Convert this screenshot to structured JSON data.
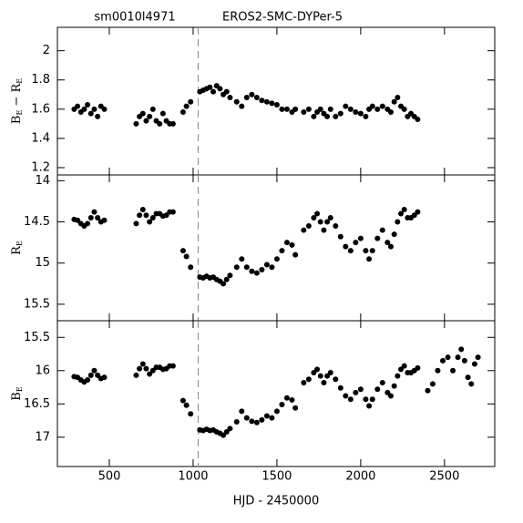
{
  "chart_data": [
    {
      "type": "scatter",
      "title": "sm0010l4971",
      "subtitle": "EROS2-SMC-DYPer-5",
      "ylabel": [
        "B",
        "E",
        " − R",
        "E"
      ],
      "color": "#000000",
      "vline": 1030,
      "xlim": [
        190,
        2800
      ],
      "xticks": [
        500,
        1000,
        1500,
        2000,
        2500
      ],
      "ylim": [
        1.15,
        2.16
      ],
      "yticks": [
        1.2,
        1.4,
        1.6,
        1.8,
        2
      ],
      "x": [
        290,
        310,
        330,
        350,
        370,
        390,
        410,
        430,
        450,
        470,
        660,
        680,
        700,
        720,
        740,
        760,
        780,
        800,
        820,
        840,
        860,
        880,
        940,
        960,
        985,
        1040,
        1060,
        1080,
        1100,
        1120,
        1140,
        1160,
        1180,
        1200,
        1220,
        1260,
        1290,
        1320,
        1350,
        1380,
        1410,
        1440,
        1470,
        1500,
        1530,
        1560,
        1590,
        1610,
        1660,
        1690,
        1720,
        1740,
        1760,
        1780,
        1800,
        1820,
        1850,
        1880,
        1910,
        1940,
        1970,
        2000,
        2030,
        2050,
        2070,
        2100,
        2130,
        2160,
        2180,
        2200,
        2220,
        2240,
        2260,
        2280,
        2300,
        2320,
        2340
      ],
      "values": [
        1.6,
        1.62,
        1.58,
        1.6,
        1.63,
        1.57,
        1.6,
        1.55,
        1.62,
        1.6,
        1.5,
        1.55,
        1.57,
        1.52,
        1.55,
        1.6,
        1.52,
        1.5,
        1.57,
        1.52,
        1.5,
        1.5,
        1.58,
        1.62,
        1.65,
        1.72,
        1.73,
        1.74,
        1.75,
        1.72,
        1.76,
        1.74,
        1.7,
        1.72,
        1.68,
        1.65,
        1.62,
        1.68,
        1.7,
        1.68,
        1.66,
        1.65,
        1.64,
        1.63,
        1.6,
        1.6,
        1.58,
        1.6,
        1.58,
        1.6,
        1.55,
        1.58,
        1.6,
        1.57,
        1.55,
        1.6,
        1.55,
        1.57,
        1.62,
        1.6,
        1.58,
        1.57,
        1.55,
        1.6,
        1.62,
        1.6,
        1.62,
        1.6,
        1.58,
        1.65,
        1.68,
        1.62,
        1.6,
        1.55,
        1.57,
        1.55,
        1.53
      ]
    },
    {
      "type": "scatter",
      "ylabel": [
        "R",
        "E"
      ],
      "color": "#000000",
      "vline": 1030,
      "xlim": [
        190,
        2800
      ],
      "xticks": [
        500,
        1000,
        1500,
        2000,
        2500
      ],
      "ylim": [
        15.7,
        13.93
      ],
      "yticks": [
        14,
        14.5,
        15,
        15.5
      ],
      "x": [
        290,
        310,
        330,
        350,
        370,
        390,
        410,
        430,
        450,
        470,
        660,
        680,
        700,
        720,
        740,
        760,
        780,
        800,
        820,
        840,
        860,
        880,
        940,
        960,
        985,
        1040,
        1060,
        1080,
        1100,
        1120,
        1140,
        1160,
        1180,
        1200,
        1220,
        1260,
        1290,
        1320,
        1350,
        1380,
        1410,
        1440,
        1470,
        1500,
        1530,
        1560,
        1590,
        1610,
        1660,
        1690,
        1720,
        1740,
        1760,
        1780,
        1800,
        1820,
        1850,
        1880,
        1910,
        1940,
        1970,
        2000,
        2030,
        2050,
        2070,
        2100,
        2130,
        2160,
        2180,
        2200,
        2220,
        2240,
        2260,
        2280,
        2300,
        2320,
        2340
      ],
      "values": [
        14.47,
        14.48,
        14.52,
        14.55,
        14.52,
        14.45,
        14.38,
        14.45,
        14.5,
        14.48,
        14.52,
        14.42,
        14.35,
        14.42,
        14.5,
        14.45,
        14.4,
        14.4,
        14.43,
        14.42,
        14.38,
        14.38,
        14.85,
        14.92,
        15.05,
        15.17,
        15.18,
        15.16,
        15.18,
        15.17,
        15.2,
        15.22,
        15.25,
        15.2,
        15.15,
        15.05,
        14.95,
        15.05,
        15.1,
        15.12,
        15.08,
        15.02,
        15.05,
        14.95,
        14.85,
        14.75,
        14.78,
        14.9,
        14.6,
        14.55,
        14.45,
        14.4,
        14.5,
        14.6,
        14.5,
        14.45,
        14.55,
        14.68,
        14.8,
        14.85,
        14.75,
        14.7,
        14.85,
        14.95,
        14.85,
        14.7,
        14.6,
        14.75,
        14.8,
        14.65,
        14.5,
        14.4,
        14.35,
        14.45,
        14.45,
        14.42,
        14.38
      ]
    },
    {
      "type": "scatter",
      "ylabel": [
        "B",
        "E"
      ],
      "xlabel": "HJD - 2450000",
      "color": "#000000",
      "vline": 1030,
      "xlim": [
        190,
        2800
      ],
      "xticks": [
        500,
        1000,
        1500,
        2000,
        2500
      ],
      "ylim": [
        17.44,
        15.25
      ],
      "yticks": [
        15.5,
        16,
        16.5,
        17
      ],
      "x": [
        290,
        310,
        330,
        350,
        370,
        390,
        410,
        430,
        450,
        470,
        660,
        680,
        700,
        720,
        740,
        760,
        780,
        800,
        820,
        840,
        860,
        880,
        940,
        960,
        985,
        1040,
        1060,
        1080,
        1100,
        1120,
        1140,
        1160,
        1180,
        1200,
        1220,
        1260,
        1290,
        1320,
        1350,
        1380,
        1410,
        1440,
        1470,
        1500,
        1530,
        1560,
        1590,
        1610,
        1660,
        1690,
        1720,
        1740,
        1760,
        1780,
        1800,
        1820,
        1850,
        1880,
        1910,
        1940,
        1970,
        2000,
        2030,
        2050,
        2070,
        2100,
        2130,
        2160,
        2180,
        2200,
        2220,
        2240,
        2260,
        2280,
        2300,
        2320,
        2340,
        2400,
        2430,
        2460,
        2490,
        2520,
        2550,
        2580,
        2600,
        2620,
        2640,
        2660,
        2680,
        2700
      ],
      "values": [
        16.09,
        16.1,
        16.14,
        16.17,
        16.14,
        16.07,
        16.0,
        16.07,
        16.12,
        16.1,
        16.07,
        15.97,
        15.9,
        15.97,
        16.05,
        16.0,
        15.95,
        15.95,
        15.98,
        15.97,
        15.93,
        15.93,
        16.45,
        16.52,
        16.65,
        16.89,
        16.9,
        16.88,
        16.9,
        16.89,
        16.92,
        16.94,
        16.97,
        16.92,
        16.87,
        16.77,
        16.61,
        16.71,
        16.76,
        16.78,
        16.74,
        16.68,
        16.71,
        16.61,
        16.51,
        16.41,
        16.44,
        16.56,
        16.18,
        16.13,
        16.03,
        15.98,
        16.08,
        16.18,
        16.08,
        16.03,
        16.13,
        16.26,
        16.38,
        16.43,
        16.33,
        16.28,
        16.43,
        16.53,
        16.43,
        16.28,
        16.18,
        16.33,
        16.38,
        16.23,
        16.08,
        15.98,
        15.93,
        16.03,
        16.03,
        16.0,
        15.96,
        16.3,
        16.2,
        16.0,
        15.85,
        15.8,
        16.0,
        15.8,
        15.68,
        15.85,
        16.1,
        16.2,
        15.9,
        15.8
      ]
    }
  ]
}
